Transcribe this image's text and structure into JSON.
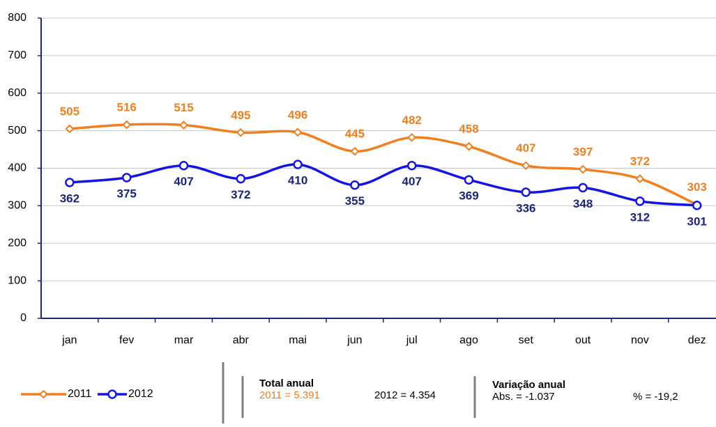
{
  "chart_data": {
    "type": "line",
    "categories": [
      "jan",
      "fev",
      "mar",
      "abr",
      "mai",
      "jun",
      "jul",
      "ago",
      "set",
      "out",
      "nov",
      "dez"
    ],
    "series": [
      {
        "name": "2011",
        "color": "#f07f1e",
        "label_color": "#f07f1e",
        "marker": "diamond",
        "label_position": "above",
        "values": [
          505,
          516,
          515,
          495,
          496,
          445,
          482,
          458,
          407,
          397,
          372,
          303
        ]
      },
      {
        "name": "2012",
        "color": "#1414e6",
        "label_color": "#1c2478",
        "marker": "circle",
        "label_position": "below",
        "values": [
          362,
          375,
          407,
          372,
          410,
          355,
          407,
          369,
          336,
          348,
          312,
          301
        ]
      }
    ],
    "ylim": [
      0,
      800
    ],
    "yticks": [
      0,
      100,
      200,
      300,
      400,
      500,
      600,
      700,
      800
    ],
    "grid": true,
    "legend": "bottom-left",
    "annotations": [
      {
        "title": "Total anual",
        "items": [
          {
            "text": "2011 = 5.391",
            "color": "#f07f1e"
          },
          {
            "text": "2012 = 4.354",
            "color": "#000000"
          }
        ]
      },
      {
        "title": "Variação anual",
        "items": [
          {
            "text": "Abs. = -1.037",
            "color": "#000000"
          },
          {
            "text": "%  = -19,2",
            "color": "#000000"
          }
        ]
      }
    ]
  }
}
